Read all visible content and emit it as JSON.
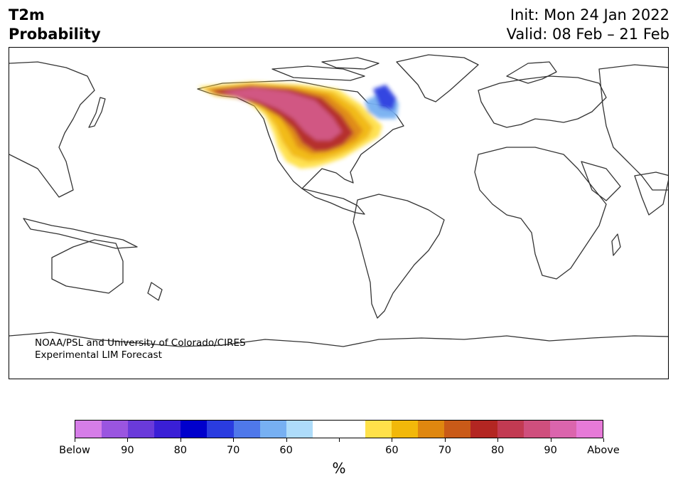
{
  "header": {
    "var_line1": "T2m",
    "var_line2": "Probability",
    "init": "Init: Mon 24 Jan 2022",
    "valid": "Valid: 08 Feb – 21 Feb"
  },
  "credit": {
    "line1": "NOAA/PSL and University of Colorado/CIRES",
    "line2": "Experimental LIM Forecast"
  },
  "colorbar": {
    "colors": [
      "#d67de8",
      "#9a55e0",
      "#6a3ada",
      "#3a1fd6",
      "#0000cc",
      "#2a3ce0",
      "#4f78ea",
      "#77b0f2",
      "#aedcfa",
      "#ffffff",
      "#ffffff",
      "#ffe14a",
      "#f2b80a",
      "#df870f",
      "#c95a18",
      "#b32622",
      "#c23a52",
      "#cf4f7d",
      "#db65ad",
      "#e67ad8"
    ],
    "labels": [
      "Below",
      "90",
      "80",
      "70",
      "60",
      "",
      "60",
      "70",
      "80",
      "90",
      "Above"
    ],
    "unit": "%"
  },
  "colors": {
    "land_outline": "#333333",
    "ocean": "#ffffff"
  }
}
